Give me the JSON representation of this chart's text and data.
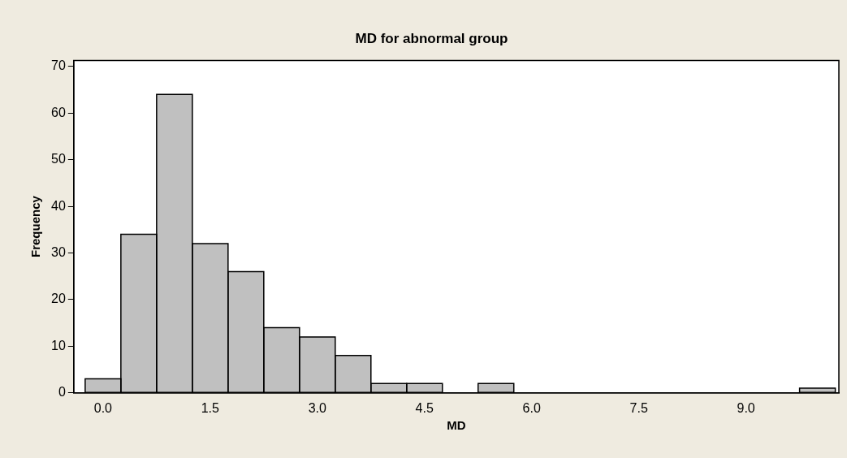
{
  "chart_data": {
    "type": "histogram",
    "title": "MD for abnormal group",
    "xlabel": "MD",
    "ylabel": "Frequency",
    "bins": [
      -0.25,
      0.25,
      0.75,
      1.25,
      1.75,
      2.25,
      2.75,
      3.25,
      3.75,
      4.25,
      4.75,
      5.25,
      5.75,
      6.25,
      6.75,
      7.25,
      7.75,
      8.25,
      8.75,
      9.25,
      9.75,
      10.25
    ],
    "values": [
      3,
      34,
      64,
      32,
      26,
      14,
      12,
      8,
      2,
      2,
      0,
      2,
      0,
      0,
      0,
      0,
      0,
      0,
      0,
      0,
      1
    ],
    "color": "#c0c0c0",
    "xlim": [
      -0.41,
      10.3
    ],
    "ylim": [
      0,
      71.3
    ],
    "xticks": [
      {
        "value": 0,
        "label": "0.0"
      },
      1.5,
      {
        "value": 3,
        "label": "3.0"
      },
      4.5,
      {
        "value": 6,
        "label": "6.0"
      },
      7.5,
      {
        "value": 9,
        "label": "9.0"
      }
    ],
    "yticks": [
      0,
      10,
      20,
      30,
      40,
      50,
      60,
      70
    ],
    "grid": false,
    "legend": false
  }
}
